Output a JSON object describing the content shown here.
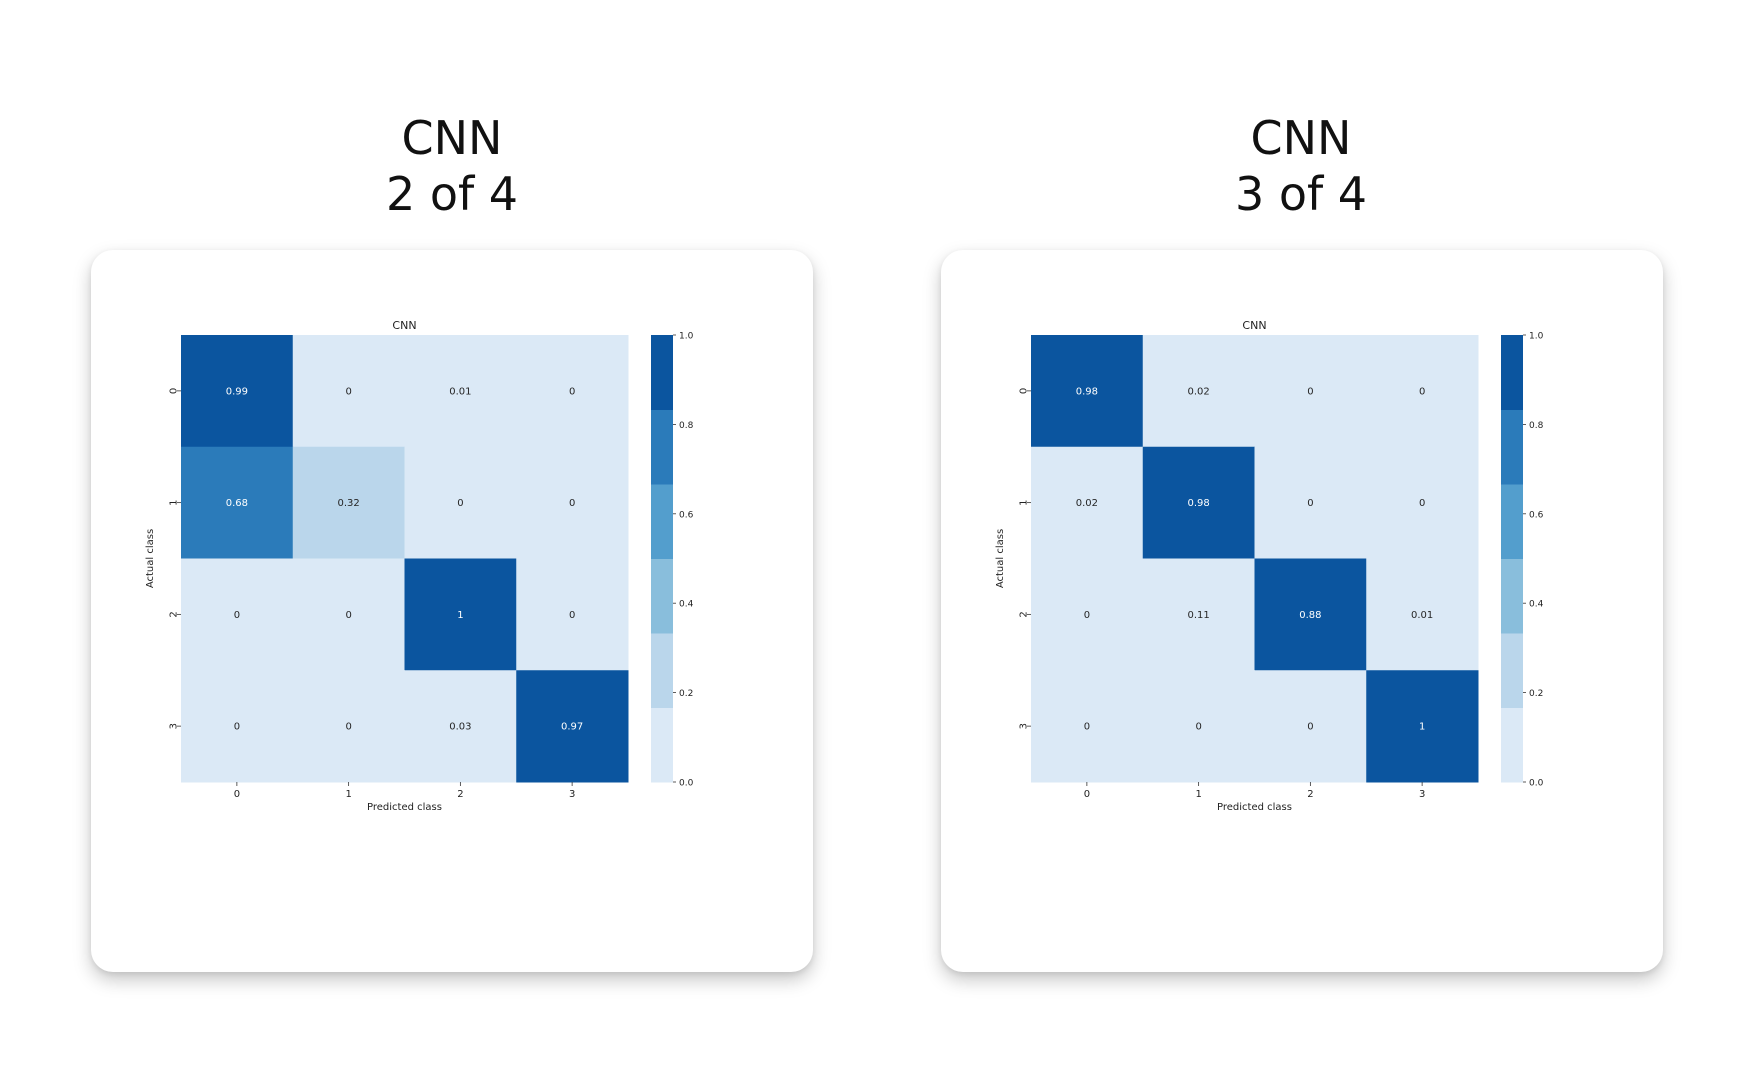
{
  "panels": [
    {
      "heading": "CNN",
      "subheading": "2 of 4"
    },
    {
      "heading": "CNN",
      "subheading": "3 of 4"
    }
  ],
  "colors": {
    "bins": [
      "#dbe9f6",
      "#bad6eb",
      "#89bedc",
      "#539ecd",
      "#2b7bba",
      "#0b559f"
    ]
  },
  "chart_data": [
    {
      "type": "heatmap",
      "title": "CNN",
      "xlabel": "Predicted class",
      "ylabel": "Actual class",
      "x_categories": [
        "0",
        "1",
        "2",
        "3"
      ],
      "y_categories": [
        "0",
        "1",
        "2",
        "3"
      ],
      "values": [
        [
          0.99,
          0,
          0.01,
          0
        ],
        [
          0.68,
          0.32,
          0,
          0
        ],
        [
          0,
          0,
          1,
          0
        ],
        [
          0,
          0,
          0.03,
          0.97
        ]
      ],
      "cell_labels": [
        [
          "0.99",
          "0",
          "0.01",
          "0"
        ],
        [
          "0.68",
          "0.32",
          "0",
          "0"
        ],
        [
          "0",
          "0",
          "1",
          "0"
        ],
        [
          "0",
          "0",
          "0.03",
          "0.97"
        ]
      ],
      "colorbar": {
        "range": [
          0,
          1
        ],
        "ticks": [
          "0.0",
          "0.2",
          "0.4",
          "0.6",
          "0.8",
          "1.0"
        ],
        "colormap": "Blues"
      }
    },
    {
      "type": "heatmap",
      "title": "CNN",
      "xlabel": "Predicted class",
      "ylabel": "Actual class",
      "x_categories": [
        "0",
        "1",
        "2",
        "3"
      ],
      "y_categories": [
        "0",
        "1",
        "2",
        "3"
      ],
      "values": [
        [
          0.98,
          0.02,
          0,
          0
        ],
        [
          0.02,
          0.98,
          0,
          0
        ],
        [
          0,
          0.11,
          0.88,
          0.01
        ],
        [
          0,
          0,
          0,
          1
        ]
      ],
      "cell_labels": [
        [
          "0.98",
          "0.02",
          "0",
          "0"
        ],
        [
          "0.02",
          "0.98",
          "0",
          "0"
        ],
        [
          "0",
          "0.11",
          "0.88",
          "0.01"
        ],
        [
          "0",
          "0",
          "0",
          "1"
        ]
      ],
      "colorbar": {
        "range": [
          0,
          1
        ],
        "ticks": [
          "0.0",
          "0.2",
          "0.4",
          "0.6",
          "0.8",
          "1.0"
        ],
        "colormap": "Blues"
      }
    }
  ]
}
